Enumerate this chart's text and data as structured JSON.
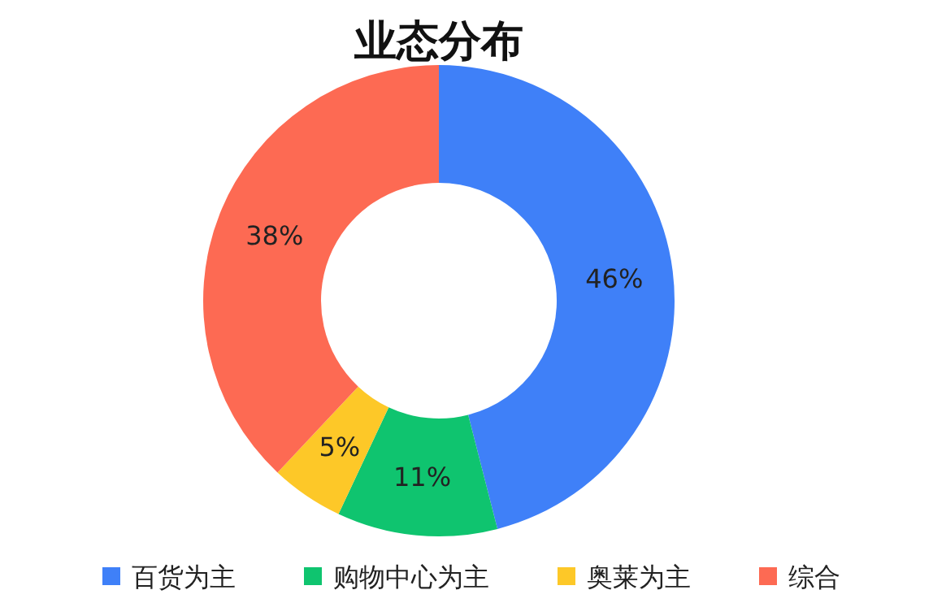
{
  "chart_data": {
    "type": "donut",
    "title": "业态分布",
    "categories": [
      "百货为主",
      "购物中心为主",
      "奥莱为主",
      "综合"
    ],
    "values": [
      46,
      11,
      5,
      38
    ],
    "value_labels": [
      "46%",
      "11%",
      "5%",
      "38%"
    ],
    "colors": [
      "#3f80f8",
      "#0fc46f",
      "#fdc828",
      "#fd6a53"
    ],
    "legend": "bottom"
  }
}
